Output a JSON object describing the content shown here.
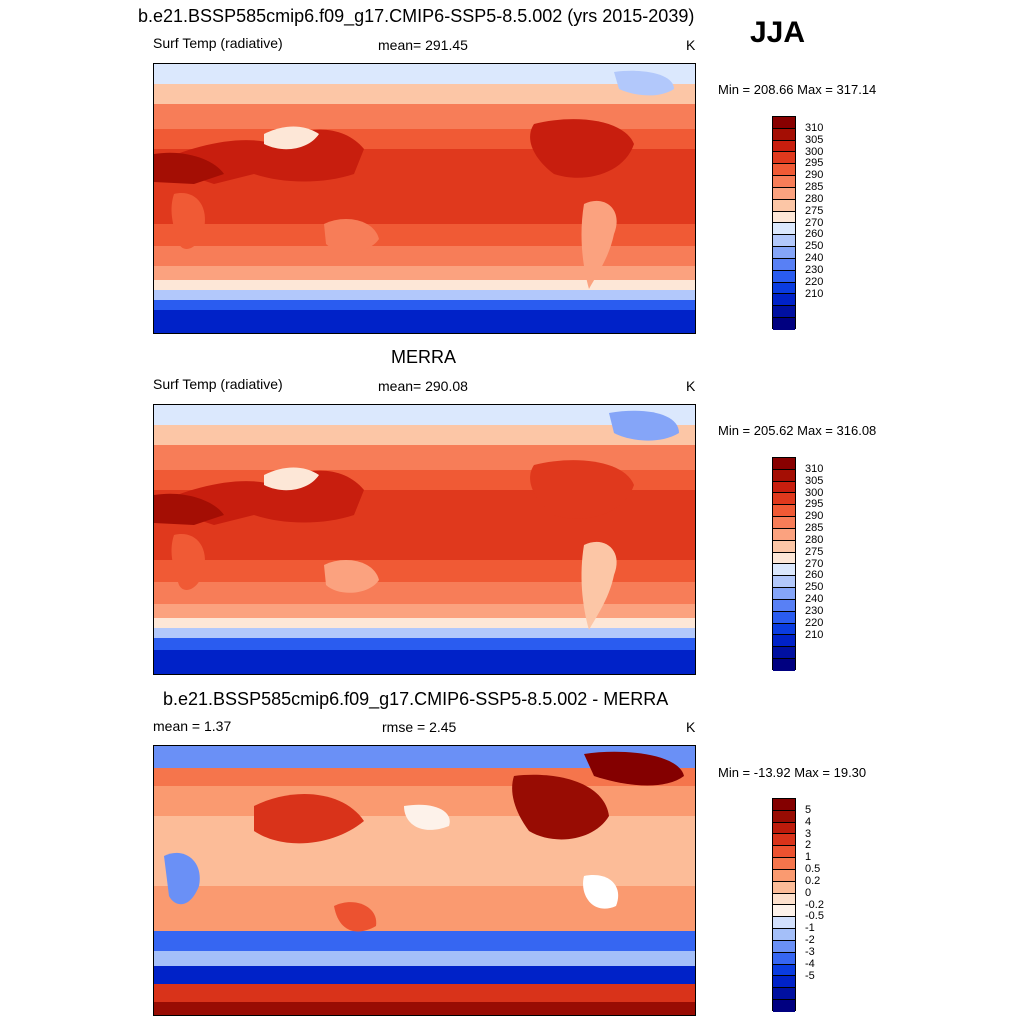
{
  "season": "JJA",
  "colors": {
    "abs": [
      "#000080",
      "#0010a0",
      "#0022c8",
      "#0a3ce0",
      "#2a5cf0",
      "#5880f5",
      "#85a5f8",
      "#b2c8fb",
      "#dbe8fd",
      "#fde7d7",
      "#fcc6a6",
      "#fba27f",
      "#f77d58",
      "#f05a35",
      "#e0391d",
      "#c81e0e",
      "#a40e04",
      "#880000"
    ],
    "diff": [
      "#000080",
      "#0010a0",
      "#0022c8",
      "#0a3ce0",
      "#3666f2",
      "#6a90f6",
      "#a4bff9",
      "#d2e0fd",
      "#fdf2ea",
      "#fde0cc",
      "#fcbc98",
      "#fa9a70",
      "#f5754c",
      "#ec5230",
      "#d9331a",
      "#bd1b0b",
      "#980c03",
      "#840000"
    ]
  },
  "panels": [
    {
      "title": "b.e21.BSSP585cmip6.f09_g17.CMIP6-SSP5-8.5.002 (yrs 2015-2039)",
      "left_label": "Surf Temp (radiative)",
      "center_label": "mean= 291.45",
      "units": "K",
      "minmax": "Min = 208.66 Max = 317.14",
      "colorbar_labels": [
        "310",
        "305",
        "300",
        "295",
        "290",
        "285",
        "280",
        "275",
        "270",
        "260",
        "250",
        "240",
        "230",
        "220",
        "210"
      ]
    },
    {
      "title": "MERRA",
      "left_label": "Surf Temp (radiative)",
      "center_label": "mean= 290.08",
      "units": "K",
      "minmax": "Min = 205.62 Max = 316.08",
      "colorbar_labels": [
        "310",
        "305",
        "300",
        "295",
        "290",
        "285",
        "280",
        "275",
        "270",
        "260",
        "250",
        "240",
        "230",
        "220",
        "210"
      ]
    },
    {
      "title": "b.e21.BSSP585cmip6.f09_g17.CMIP6-SSP5-8.5.002 - MERRA",
      "left_label": "mean =   1.37",
      "center_label": "rmse =   2.45",
      "units": "K",
      "minmax": "Min = -13.92 Max =  19.30",
      "colorbar_labels": [
        "5",
        "4",
        "3",
        "2",
        "1",
        "0.5",
        "0.2",
        "0",
        "-0.2",
        "-0.5",
        "-1",
        "-2",
        "-3",
        "-4",
        "-5"
      ]
    }
  ]
}
